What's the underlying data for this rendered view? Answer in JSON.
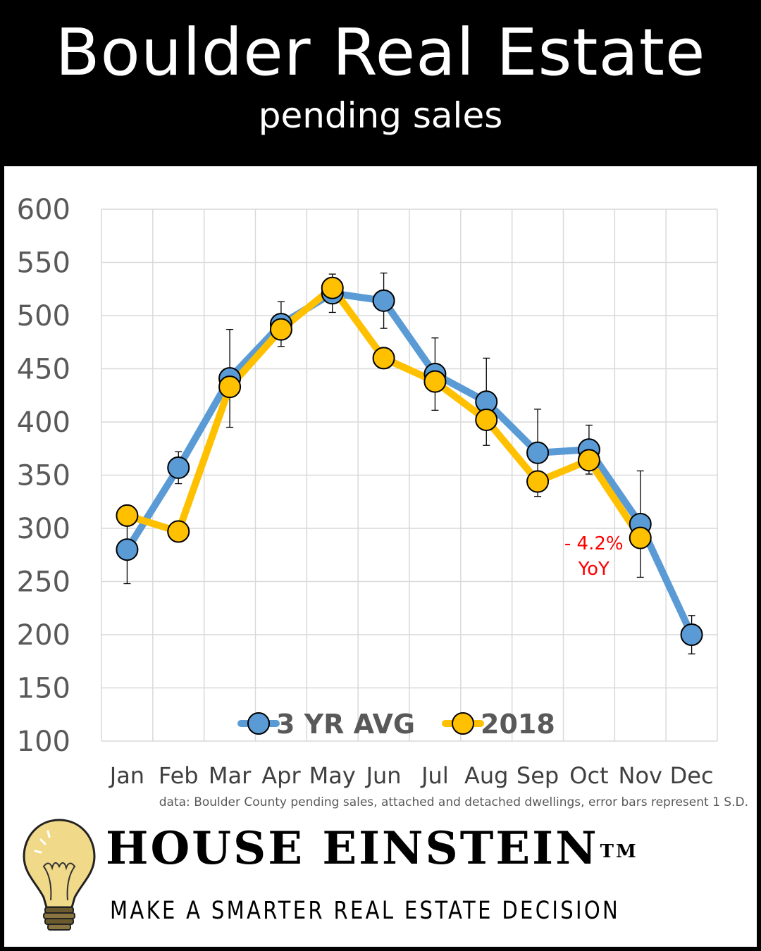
{
  "header": {
    "title": "Boulder Real Estate",
    "subtitle": "pending sales"
  },
  "chart_data": {
    "type": "line",
    "categories": [
      "Jan",
      "Feb",
      "Mar",
      "Apr",
      "May",
      "Jun",
      "Jul",
      "Aug",
      "Sep",
      "Oct",
      "Nov",
      "Dec"
    ],
    "ylim": [
      100,
      600
    ],
    "yticks": [
      100,
      150,
      200,
      250,
      300,
      350,
      400,
      450,
      500,
      550,
      600
    ],
    "grid": true,
    "legend_position": "bottom-center",
    "series": [
      {
        "name": "3 YR AVG",
        "color": "#5B9BD5",
        "values": [
          280,
          357,
          441,
          492,
          521,
          514,
          445,
          419,
          371,
          374,
          304,
          200
        ],
        "error_bars_sd": [
          32,
          15,
          46,
          21,
          18,
          26,
          34,
          41,
          41,
          23,
          50,
          18
        ]
      },
      {
        "name": "2018",
        "color": "#FFC000",
        "values": [
          312,
          297,
          433,
          487,
          526,
          460,
          438,
          402,
          344,
          364,
          291,
          null
        ]
      }
    ],
    "annotation": {
      "line1": "- 4.2%",
      "line2": "YoY",
      "color": "#FF0000"
    },
    "footnote": "data: Boulder County pending sales, attached and detached dwellings, error bars represent 1 S.D."
  },
  "branding": {
    "name": "HOUSE EINSTEIN",
    "trademark": "TM",
    "tagline": "MAKE A SMARTER REAL ESTATE DECISION",
    "bulb_color": "#F1D98A"
  }
}
